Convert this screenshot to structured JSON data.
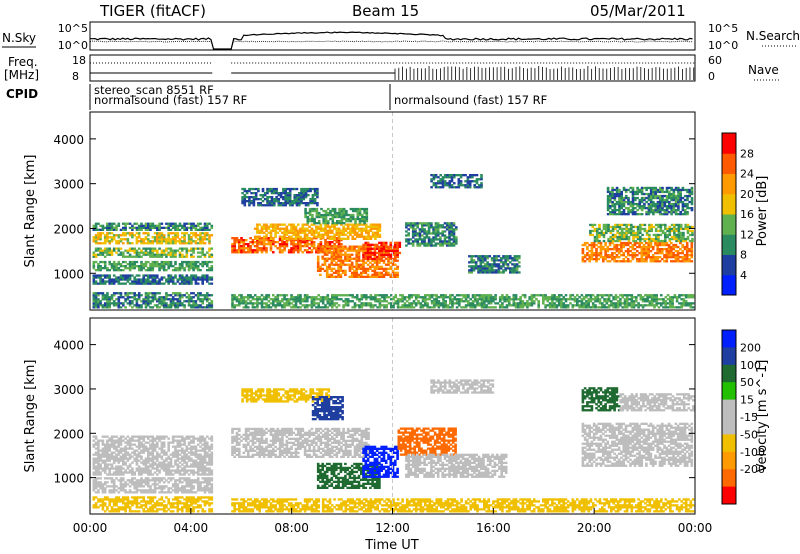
{
  "header": {
    "station": "TIGER (fitACF)",
    "beam": "Beam 15",
    "date": "05/Mar/2011"
  },
  "left_labels": {
    "nsky": "N.Sky",
    "freq_line1": "Freq.",
    "freq_line2": "[MHz]",
    "cpid": "CPID"
  },
  "right_labels": {
    "nsearch": "N.Search",
    "nave": "Nave"
  },
  "noise_panel": {
    "left_ticks": [
      "10^5",
      "10^0"
    ],
    "right_ticks": [
      "10^5",
      "10^0"
    ]
  },
  "freq_panel": {
    "left_ticks": [
      "18",
      "8"
    ],
    "right_ticks": [
      "60",
      "0"
    ]
  },
  "cpid_entries": [
    {
      "text": "stereo_scan 8551 RF",
      "start_hour": 0.1
    },
    {
      "text": "normalsound (fast) 157 RF",
      "start_hour": 0.1
    },
    {
      "text": "normalsound (fast) 157 RF",
      "start_hour": 12.1
    }
  ],
  "colors": {
    "power_scale": [
      "#0020ff",
      "#1f3fa0",
      "#2a8a60",
      "#5fb04f",
      "#f0c000",
      "#ff9a00",
      "#ff5a00",
      "#ff0000"
    ],
    "velocity_scale": [
      "#ff0000",
      "#ff6a00",
      "#ff9a00",
      "#f0c000",
      "#bdbdbd",
      "#bdbdbd",
      "#22c000",
      "#1f6a30",
      "#1f3fa0",
      "#0020ff"
    ]
  },
  "chart_data": [
    {
      "type": "heatmap",
      "name": "power",
      "xlabel": "",
      "ylabel": "Slant Range [km]",
      "xlim": [
        0,
        24
      ],
      "ylim": [
        180,
        4600
      ],
      "y_ticks": [
        1000,
        2000,
        3000,
        4000
      ],
      "colorbar_label": "Power [dB]",
      "colorbar_ticks": [
        4,
        8,
        12,
        16,
        20,
        24,
        28
      ],
      "colorbar_range": [
        0,
        32
      ],
      "bands": [
        {
          "t0": 0.1,
          "t1": 4.8,
          "r0": 1650,
          "r1": 1900,
          "v": 18
        },
        {
          "t0": 0.1,
          "t1": 4.8,
          "r0": 1350,
          "r1": 1550,
          "v": 14
        },
        {
          "t0": 0.1,
          "t1": 4.8,
          "r0": 1050,
          "r1": 1250,
          "v": 12
        },
        {
          "t0": 0.1,
          "t1": 4.8,
          "r0": 1950,
          "r1": 2100,
          "v": 10
        },
        {
          "t0": 0.1,
          "t1": 4.8,
          "r0": 750,
          "r1": 950,
          "v": 8
        },
        {
          "t0": 0.1,
          "t1": 4.8,
          "r0": 220,
          "r1": 550,
          "v": 10
        },
        {
          "t0": 5.6,
          "t1": 10.0,
          "r0": 1450,
          "r1": 1800,
          "v": 26
        },
        {
          "t0": 6.5,
          "t1": 11.5,
          "r0": 1750,
          "r1": 2100,
          "v": 20
        },
        {
          "t0": 8.5,
          "t1": 11.0,
          "r0": 2100,
          "r1": 2450,
          "v": 12
        },
        {
          "t0": 6.0,
          "t1": 9.0,
          "r0": 2500,
          "r1": 2900,
          "v": 8
        },
        {
          "t0": 9.0,
          "t1": 12.2,
          "r0": 900,
          "r1": 1600,
          "v": 24
        },
        {
          "t0": 10.8,
          "t1": 12.3,
          "r0": 1300,
          "r1": 1700,
          "v": 28
        },
        {
          "t0": 12.5,
          "t1": 14.5,
          "r0": 1600,
          "r1": 2100,
          "v": 10
        },
        {
          "t0": 13.5,
          "t1": 15.5,
          "r0": 2900,
          "r1": 3200,
          "v": 8
        },
        {
          "t0": 15.0,
          "t1": 17.0,
          "r0": 1000,
          "r1": 1400,
          "v": 9
        },
        {
          "t0": 19.5,
          "t1": 23.9,
          "r0": 1250,
          "r1": 1700,
          "v": 24
        },
        {
          "t0": 19.8,
          "t1": 23.9,
          "r0": 1700,
          "r1": 2100,
          "v": 14
        },
        {
          "t0": 20.5,
          "t1": 23.9,
          "r0": 2300,
          "r1": 2900,
          "v": 10
        },
        {
          "t0": 5.6,
          "t1": 23.9,
          "r0": 220,
          "r1": 500,
          "v": 12
        }
      ]
    },
    {
      "type": "heatmap",
      "name": "velocity",
      "xlabel": "Time UT",
      "ylabel": "Slant Range [km]",
      "xlim": [
        0,
        24
      ],
      "ylim": [
        180,
        4600
      ],
      "y_ticks": [
        1000,
        2000,
        3000,
        4000
      ],
      "x_ticks": [
        "00:00",
        "04:00",
        "08:00",
        "12:00",
        "16:00",
        "20:00",
        "00:00"
      ],
      "colorbar_label": "Velocity [m s^-1]",
      "colorbar_ticks": [
        "200",
        "100",
        "50",
        "15",
        "-15",
        "-50",
        "-100",
        "-200"
      ],
      "bands": [
        {
          "t0": 0.1,
          "t1": 4.8,
          "r0": 1050,
          "r1": 1950,
          "v": 0
        },
        {
          "t0": 0.1,
          "t1": 4.8,
          "r0": 650,
          "r1": 1000,
          "v": -10
        },
        {
          "t0": 0.1,
          "t1": 4.8,
          "r0": 220,
          "r1": 550,
          "v": -40
        },
        {
          "t0": 5.6,
          "t1": 11.0,
          "r0": 1450,
          "r1": 2100,
          "v": 0
        },
        {
          "t0": 6.0,
          "t1": 9.5,
          "r0": 2700,
          "r1": 3000,
          "v": -30
        },
        {
          "t0": 8.8,
          "t1": 10.0,
          "r0": 2300,
          "r1": 2800,
          "v": 150
        },
        {
          "t0": 9.0,
          "t1": 11.5,
          "r0": 750,
          "r1": 1300,
          "v": 60
        },
        {
          "t0": 10.8,
          "t1": 12.2,
          "r0": 1000,
          "r1": 1700,
          "v": 220
        },
        {
          "t0": 12.2,
          "t1": 14.5,
          "r0": 1500,
          "r1": 2100,
          "v": -150
        },
        {
          "t0": 12.5,
          "t1": 16.5,
          "r0": 1000,
          "r1": 1500,
          "v": 0
        },
        {
          "t0": 13.5,
          "t1": 16.0,
          "r0": 2900,
          "r1": 3200,
          "v": 0
        },
        {
          "t0": 19.5,
          "t1": 23.9,
          "r0": 1250,
          "r1": 2200,
          "v": 0
        },
        {
          "t0": 19.5,
          "t1": 21.0,
          "r0": 2500,
          "r1": 3000,
          "v": 60
        },
        {
          "t0": 21.0,
          "t1": 23.9,
          "r0": 2500,
          "r1": 2900,
          "v": 0
        },
        {
          "t0": 5.6,
          "t1": 23.9,
          "r0": 220,
          "r1": 500,
          "v": -40
        }
      ]
    }
  ]
}
